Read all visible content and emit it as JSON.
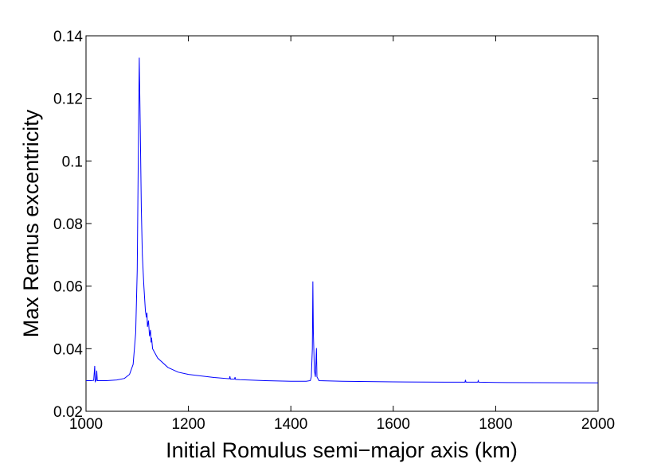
{
  "chart_data": {
    "type": "line",
    "x_label": "Initial Romulus semi−major axis (km)",
    "y_label": "Max Remus excentricity",
    "color": "#0000ff",
    "x": [
      1000,
      1010,
      1015,
      1017,
      1018,
      1020,
      1021,
      1022,
      1040,
      1060,
      1075,
      1085,
      1092,
      1097,
      1100,
      1102,
      1104,
      1106,
      1108,
      1110,
      1113,
      1116,
      1118,
      1119,
      1120,
      1122,
      1124,
      1126,
      1127,
      1128,
      1130,
      1140,
      1160,
      1180,
      1200,
      1250,
      1280,
      1281,
      1282,
      1290,
      1291,
      1292,
      1300,
      1350,
      1400,
      1430,
      1438,
      1440,
      1442,
      1443,
      1444,
      1446,
      1448,
      1450,
      1451,
      1455,
      1500,
      1600,
      1700,
      1740,
      1741,
      1742,
      1765,
      1766,
      1767,
      1800,
      2000
    ],
    "values": [
      0.0298,
      0.0298,
      0.0299,
      0.0345,
      0.0295,
      0.03,
      0.033,
      0.0298,
      0.0298,
      0.03,
      0.0305,
      0.0318,
      0.035,
      0.045,
      0.065,
      0.1,
      0.133,
      0.11,
      0.085,
      0.07,
      0.06,
      0.052,
      0.05,
      0.0515,
      0.047,
      0.049,
      0.044,
      0.046,
      0.042,
      0.0435,
      0.04,
      0.037,
      0.034,
      0.0325,
      0.0318,
      0.0308,
      0.0304,
      0.0312,
      0.0303,
      0.0303,
      0.0309,
      0.0302,
      0.0301,
      0.0298,
      0.0296,
      0.0296,
      0.0298,
      0.031,
      0.04,
      0.0615,
      0.045,
      0.033,
      0.031,
      0.0402,
      0.031,
      0.0298,
      0.0296,
      0.0294,
      0.0293,
      0.0293,
      0.03,
      0.0293,
      0.0293,
      0.0298,
      0.0293,
      0.0292,
      0.0291
    ],
    "xlim": [
      1000,
      2000
    ],
    "xticks": [
      1000,
      1200,
      1400,
      1600,
      1800,
      2000
    ],
    "ylim": [
      0.02,
      0.14
    ],
    "yticks": [
      0.02,
      0.04,
      0.06,
      0.08,
      0.1,
      0.12,
      0.14
    ],
    "grid": false
  }
}
